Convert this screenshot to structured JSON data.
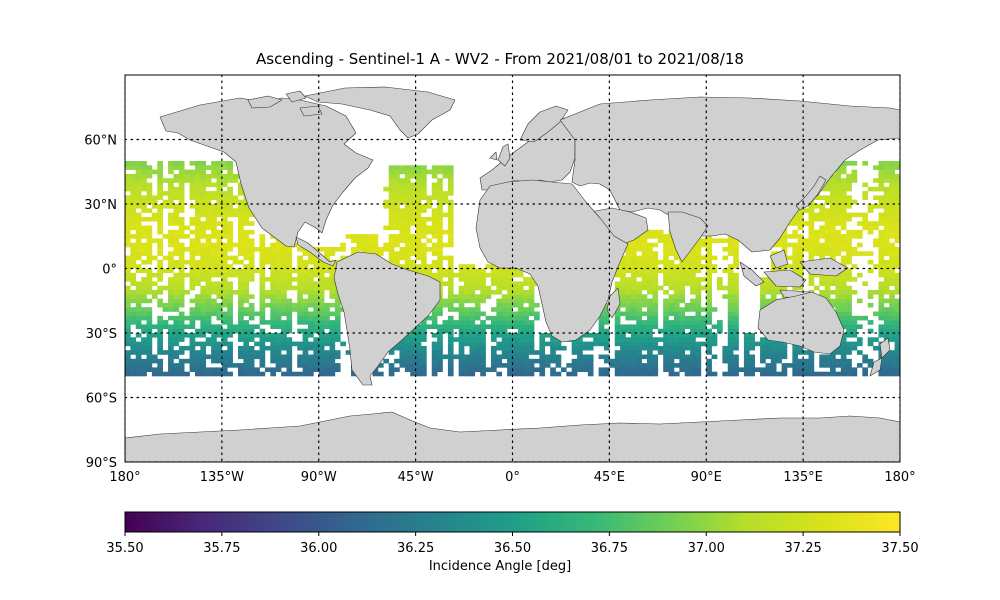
{
  "title": "Ascending - Sentinel-1 A - WV2 - From 2021/08/01 to 2021/08/18",
  "map": {
    "projection": "PlateCarree",
    "lon_range": [
      -180,
      180
    ],
    "lat_range": [
      -90,
      90
    ],
    "land_color": "#d0d0d0",
    "coastline_color": "#333333",
    "gridlines": "dotted",
    "lat_ticks": [
      {
        "value": 60,
        "label": "60°N"
      },
      {
        "value": 30,
        "label": "30°N"
      },
      {
        "value": 0,
        "label": "0°"
      },
      {
        "value": -30,
        "label": "30°S"
      },
      {
        "value": -60,
        "label": "60°S"
      },
      {
        "value": -90,
        "label": "90°S"
      }
    ],
    "lon_ticks": [
      {
        "value": -180,
        "label": "180°"
      },
      {
        "value": -135,
        "label": "135°W"
      },
      {
        "value": -90,
        "label": "90°W"
      },
      {
        "value": -45,
        "label": "45°W"
      },
      {
        "value": 0,
        "label": "0°"
      },
      {
        "value": 45,
        "label": "45°E"
      },
      {
        "value": 90,
        "label": "90°E"
      },
      {
        "value": 135,
        "label": "135°E"
      },
      {
        "value": 180,
        "label": "180°"
      }
    ]
  },
  "colorbar": {
    "label": "Incidence Angle [deg]",
    "colormap": "viridis",
    "min": 35.5,
    "max": 37.5,
    "tick_labels": [
      "35.50",
      "35.75",
      "36.00",
      "36.25",
      "36.50",
      "36.75",
      "37.00",
      "37.25",
      "37.50"
    ]
  },
  "chart_data": {
    "type": "heatmap",
    "variable": "Incidence Angle [deg]",
    "lat_extent": [
      -50,
      50
    ],
    "angle_by_latitude": [
      {
        "lat": 50,
        "value": 36.95
      },
      {
        "lat": 40,
        "value": 37.1
      },
      {
        "lat": 30,
        "value": 37.22
      },
      {
        "lat": 20,
        "value": 37.3
      },
      {
        "lat": 10,
        "value": 37.32
      },
      {
        "lat": 0,
        "value": 37.25
      },
      {
        "lat": -10,
        "value": 37.1
      },
      {
        "lat": -20,
        "value": 36.85
      },
      {
        "lat": -30,
        "value": 36.55
      },
      {
        "lat": -40,
        "value": 36.3
      },
      {
        "lat": -50,
        "value": 36.1
      }
    ]
  }
}
